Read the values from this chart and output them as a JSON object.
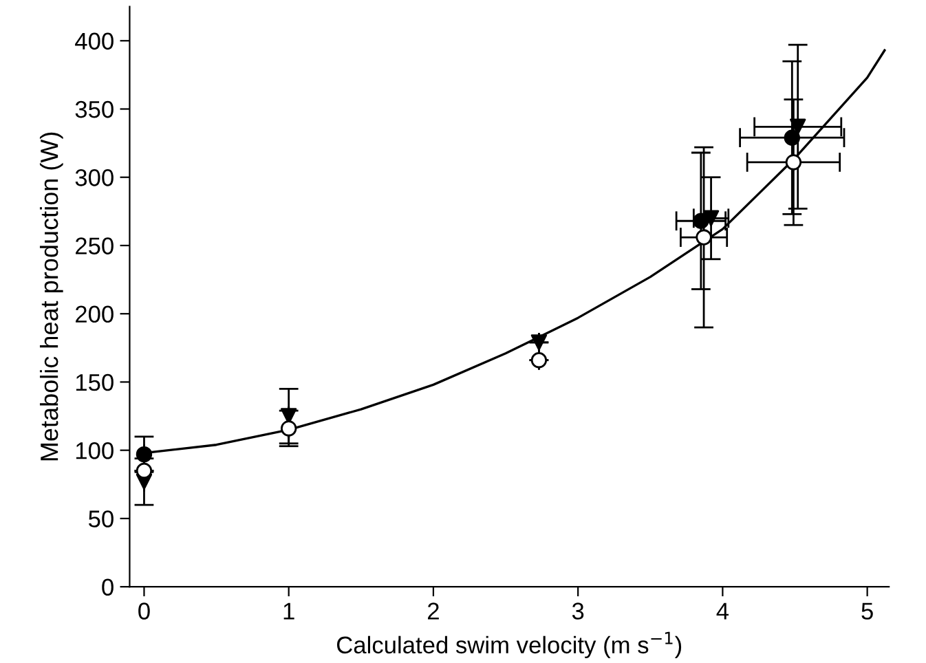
{
  "chart_data": {
    "type": "scatter",
    "xlabel": "Calculated swim velocity (m s$^{−1}$)",
    "ylabel": "Metabolic heat production (W)",
    "xlim": [
      -0.1,
      5.15
    ],
    "ylim": [
      0,
      425
    ],
    "xticks": [
      0,
      1,
      2,
      3,
      4,
      5
    ],
    "yticks": [
      0,
      50,
      100,
      150,
      200,
      250,
      300,
      350,
      400
    ],
    "grid": false,
    "legend": false,
    "series": [
      {
        "type": "line",
        "color": "#000000",
        "marker": "none",
        "x": [
          0,
          0.5,
          1,
          1.5,
          2,
          2.5,
          3,
          3.5,
          4,
          4.5,
          5,
          5.12
        ],
        "values": [
          98,
          104,
          115,
          130,
          148,
          171,
          197,
          227,
          262,
          314,
          373,
          393
        ]
      },
      {
        "color": "#000000",
        "marker": "circle",
        "x": [
          0,
          1,
          3.85,
          4.48
        ],
        "values": [
          97,
          null,
          268,
          329
        ],
        "errors": [
          13,
          null,
          50,
          56
        ],
        "xerrors": [
          null,
          null,
          0.17,
          0.36
        ]
      },
      {
        "color": "#000000",
        "marker": "triangle",
        "x": [
          0,
          1,
          2.73,
          3.92,
          4.52
        ],
        "values": [
          77,
          125,
          179,
          270,
          337
        ],
        "errors": [
          17,
          20,
          null,
          30,
          60
        ],
        "xerrors": [
          null,
          null,
          null,
          0.12,
          0.3
        ]
      },
      {
        "color": "#ffffff",
        "marker": "circle",
        "x": [
          0,
          1,
          2.73,
          3.87,
          4.49
        ],
        "values": [
          85,
          116,
          166,
          256,
          311
        ],
        "errors": [
          null,
          13,
          null,
          66,
          46
        ],
        "xerrors": [
          null,
          null,
          null,
          0.16,
          0.32
        ]
      }
    ]
  }
}
